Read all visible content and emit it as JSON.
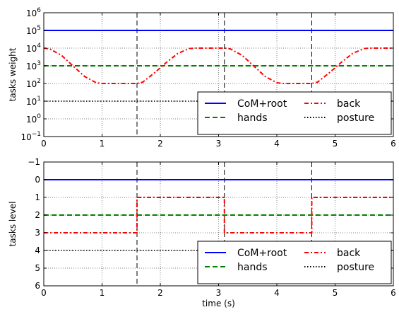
{
  "chart_data": [
    {
      "type": "line",
      "title": "",
      "xlabel": "",
      "ylabel": "tasks weight",
      "yscale": "log",
      "xlim": [
        0,
        6
      ],
      "ylim": [
        0.1,
        1000000
      ],
      "x_ticks": [
        "0",
        "1",
        "2",
        "3",
        "4",
        "5",
        "6"
      ],
      "y_ticks": [
        {
          "base": "10",
          "exp": "−1",
          "value": 0.1
        },
        {
          "base": "10",
          "exp": "0",
          "value": 1
        },
        {
          "base": "10",
          "exp": "1",
          "value": 10
        },
        {
          "base": "10",
          "exp": "2",
          "value": 100
        },
        {
          "base": "10",
          "exp": "3",
          "value": 1000
        },
        {
          "base": "10",
          "exp": "4",
          "value": 10000
        },
        {
          "base": "10",
          "exp": "5",
          "value": 100000
        },
        {
          "base": "10",
          "exp": "6",
          "value": 1000000
        }
      ],
      "grid": true,
      "vlines": [
        1.6,
        3.1,
        4.6
      ],
      "legend_position": "lower-right",
      "series": [
        {
          "name": "CoM+root",
          "color": "#0000ff",
          "style": "solid",
          "x": [
            0,
            6
          ],
          "y": [
            100000,
            100000
          ]
        },
        {
          "name": "hands",
          "color": "#008000",
          "style": "dashed",
          "x": [
            0,
            6
          ],
          "y": [
            1000,
            1000
          ]
        },
        {
          "name": "back",
          "color": "#ff0000",
          "style": "dashdot",
          "x": [
            0,
            0.1,
            0.3,
            0.5,
            0.7,
            0.9,
            1.0,
            1.6,
            1.7,
            1.9,
            2.1,
            2.3,
            2.5,
            2.6,
            3.1,
            3.2,
            3.4,
            3.6,
            3.8,
            4.0,
            4.1,
            4.6,
            4.7,
            4.9,
            5.1,
            5.3,
            5.5,
            5.6,
            6.0
          ],
          "y": [
            10000,
            9000,
            4000,
            1000,
            250,
            110,
            100,
            100,
            120,
            400,
            1500,
            5000,
            9500,
            10000,
            10000,
            9000,
            4000,
            1000,
            250,
            110,
            100,
            100,
            120,
            400,
            1500,
            5000,
            9500,
            10000,
            10000
          ]
        },
        {
          "name": "posture",
          "color": "#000000",
          "style": "dotted",
          "x": [
            0,
            6
          ],
          "y": [
            10,
            10
          ]
        }
      ]
    },
    {
      "type": "line",
      "title": "",
      "xlabel": "time (s)",
      "ylabel": "tasks level",
      "xlim": [
        0,
        6
      ],
      "ylim": [
        6,
        -1
      ],
      "y_inverted": true,
      "x_ticks": [
        "0",
        "1",
        "2",
        "3",
        "4",
        "5",
        "6"
      ],
      "y_ticks": [
        "−1",
        "0",
        "1",
        "2",
        "3",
        "4",
        "5",
        "6"
      ],
      "grid": true,
      "vlines": [
        1.6,
        3.1,
        4.6
      ],
      "legend_position": "lower-right",
      "series": [
        {
          "name": "CoM+root",
          "color": "#0000ff",
          "style": "solid",
          "x": [
            0,
            6
          ],
          "y": [
            0,
            0
          ]
        },
        {
          "name": "hands",
          "color": "#008000",
          "style": "dashed",
          "x": [
            0,
            6
          ],
          "y": [
            2,
            2
          ]
        },
        {
          "name": "back",
          "color": "#ff0000",
          "style": "dashdot",
          "x": [
            0,
            1.6,
            1.6,
            3.1,
            3.1,
            4.6,
            4.6,
            6.0
          ],
          "y": [
            3,
            3,
            1,
            1,
            3,
            3,
            1,
            1
          ]
        },
        {
          "name": "posture",
          "color": "#000000",
          "style": "dotted",
          "x": [
            0,
            6
          ],
          "y": [
            4,
            4
          ]
        }
      ]
    }
  ]
}
